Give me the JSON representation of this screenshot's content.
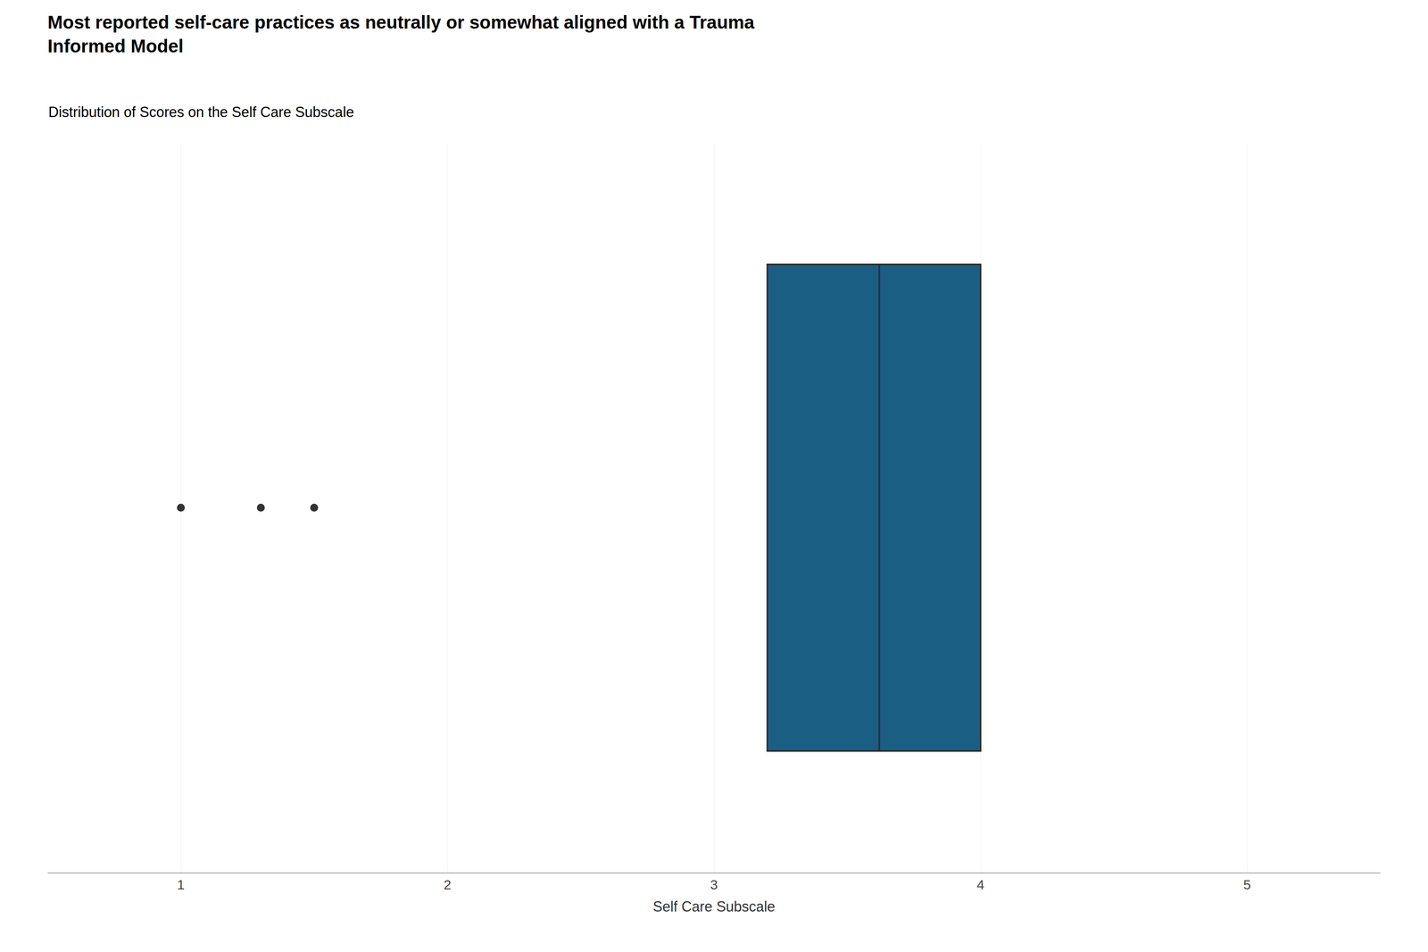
{
  "chart_data": {
    "type": "box",
    "title": "Most reported self-care practices as neutrally or somewhat aligned with a Trauma\nInformed Model",
    "subtitle": "Distribution of Scores on the Self Care Subscale",
    "xlabel": "Self Care Subscale",
    "q1": 3.2,
    "median": 3.62,
    "q3": 4.0,
    "whisker_low": 3.2,
    "whisker_high": 4.0,
    "outliers": [
      1.0,
      1.3,
      1.5
    ],
    "color": "#1B5E84",
    "xlim": [
      0.5,
      5.5
    ],
    "xticks": [
      1,
      2,
      3,
      4,
      5
    ],
    "grid": true,
    "tick_labels": "x"
  }
}
